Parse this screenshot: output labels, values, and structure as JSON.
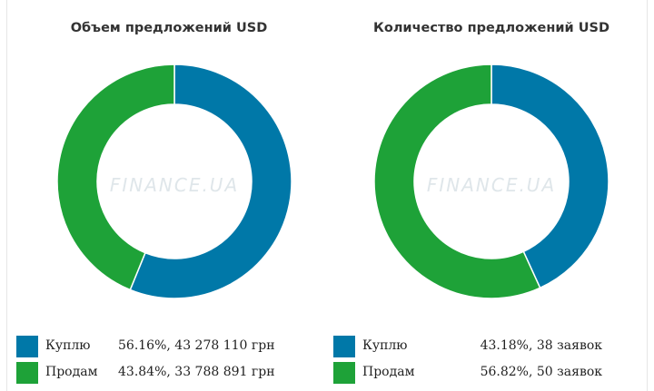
{
  "chart_data": [
    {
      "type": "pie",
      "title": "Объем предложений USD",
      "watermark": "FINANCE.UA",
      "categories": [
        "Куплю",
        "Продам"
      ],
      "values": [
        56.16,
        43.84
      ],
      "value_labels": [
        "56.16%, 43 278 110 грн",
        "43.84%, 33 788 891 грн"
      ],
      "colors": [
        "#0078a8",
        "#1ea238"
      ]
    },
    {
      "type": "pie",
      "title": "Количество предложений USD",
      "watermark": "FINANCE.UA",
      "categories": [
        "Куплю",
        "Продам"
      ],
      "values": [
        43.18,
        56.82
      ],
      "value_labels": [
        "43.18%, 38 заявок",
        "56.82%, 50 заявок"
      ],
      "colors": [
        "#0078a8",
        "#1ea238"
      ]
    }
  ]
}
